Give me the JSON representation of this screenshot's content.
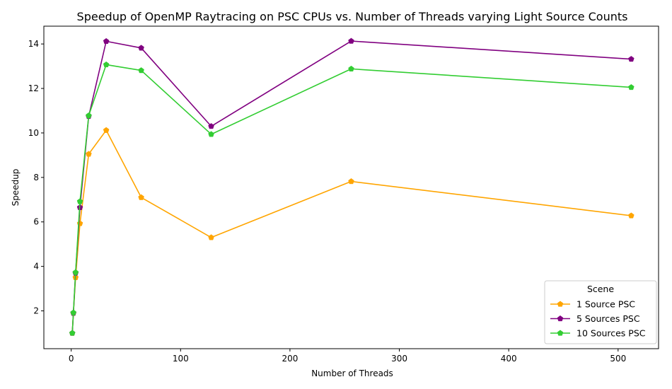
{
  "chart_data": {
    "type": "line",
    "title": "Speedup of OpenMP Raytracing on PSC CPUs vs. Number of Threads varying Light Source Counts",
    "xlabel": "Number of Threads",
    "ylabel": "Speedup",
    "xlim": [
      -25,
      537
    ],
    "ylim": [
      0.3,
      14.8
    ],
    "xticks": [
      0,
      100,
      200,
      300,
      400,
      500
    ],
    "yticks": [
      2,
      4,
      6,
      8,
      10,
      12,
      14
    ],
    "grid": false,
    "legend": {
      "title": "Scene",
      "placement": "lower-right"
    },
    "x": [
      1,
      2,
      4,
      8,
      16,
      32,
      64,
      128,
      256,
      512
    ],
    "series": [
      {
        "name": "1 Source PSC",
        "color": "#ffa500",
        "values": [
          1.0,
          1.9,
          3.5,
          5.93,
          9.05,
          10.12,
          7.1,
          5.3,
          7.82,
          6.28
        ]
      },
      {
        "name": "5 Sources PSC",
        "color": "#800080",
        "values": [
          1.0,
          1.9,
          3.7,
          6.65,
          10.75,
          14.12,
          13.82,
          10.3,
          14.13,
          13.32
        ]
      },
      {
        "name": "10 Sources PSC",
        "color": "#32cd32",
        "values": [
          1.0,
          1.92,
          3.73,
          6.92,
          10.78,
          13.07,
          12.81,
          9.94,
          12.88,
          12.05
        ]
      }
    ]
  }
}
